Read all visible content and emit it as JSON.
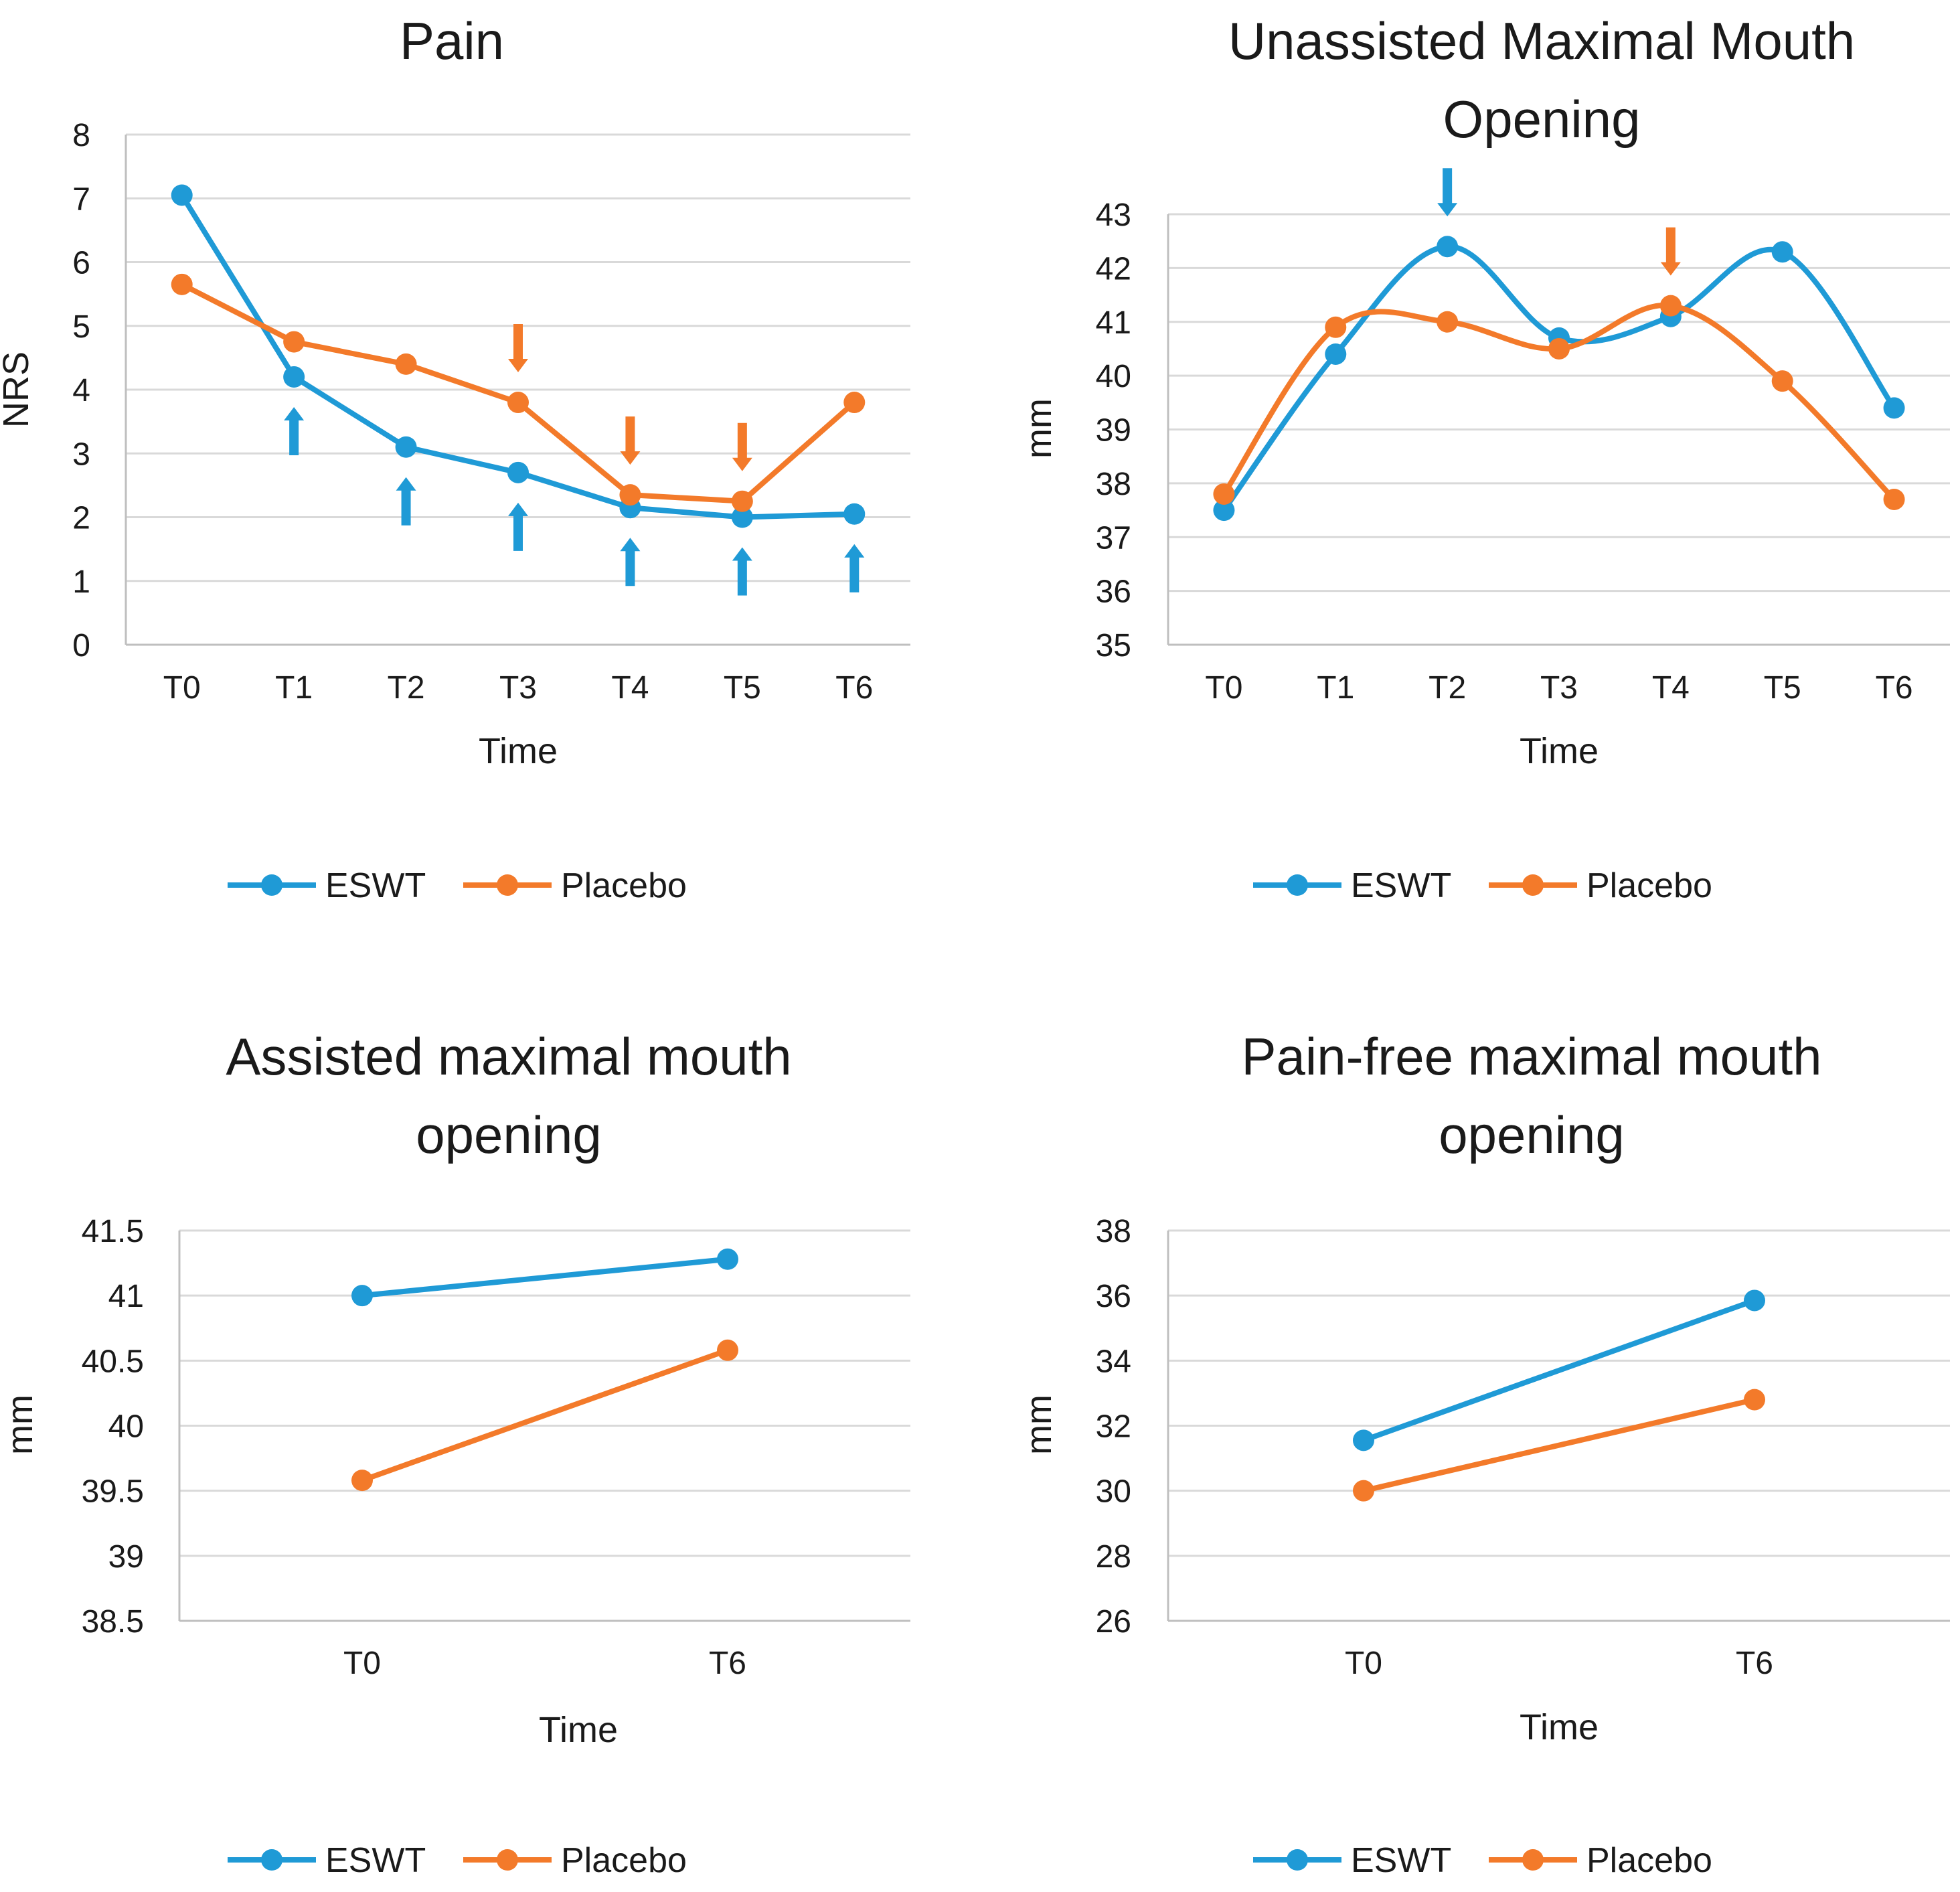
{
  "colors": {
    "eswt": "#1F9AD6",
    "placebo": "#F37A2A"
  },
  "chart_data": [
    {
      "type": "line",
      "title_lines": [
        "Pain"
      ],
      "xlabel": "Time",
      "ylabel": "NRS",
      "categories": [
        "T0",
        "T1",
        "T2",
        "T3",
        "T4",
        "T5",
        "T6"
      ],
      "ylim": [
        0,
        8
      ],
      "yticks": [
        "0",
        "1",
        "2",
        "3",
        "4",
        "5",
        "6",
        "7",
        "8"
      ],
      "smooth": false,
      "grid": true,
      "legend": "bottom",
      "series": [
        {
          "name": "ESWT",
          "color": "#1F9AD6",
          "values": [
            7.05,
            4.2,
            3.1,
            2.7,
            2.15,
            2.0,
            2.05
          ]
        },
        {
          "name": "Placebo",
          "color": "#F37A2A",
          "values": [
            5.65,
            4.75,
            4.4,
            3.8,
            2.35,
            2.25,
            3.8
          ]
        }
      ],
      "arrows": [
        {
          "series": "ESWT",
          "direction": "up",
          "categories": [
            "T1",
            "T2",
            "T3",
            "T4",
            "T5",
            "T6"
          ]
        },
        {
          "series": "Placebo",
          "direction": "down",
          "categories": [
            "T3",
            "T4",
            "T5"
          ]
        }
      ]
    },
    {
      "type": "line",
      "title_lines": [
        "Unassisted Maximal Mouth",
        "Opening"
      ],
      "xlabel": "Time",
      "ylabel": "mm",
      "categories": [
        "T0",
        "T1",
        "T2",
        "T3",
        "T4",
        "T5",
        "T6"
      ],
      "ylim": [
        35,
        43
      ],
      "yticks": [
        "35",
        "36",
        "37",
        "38",
        "39",
        "40",
        "41",
        "42",
        "43"
      ],
      "smooth": true,
      "grid": true,
      "legend": "bottom",
      "series": [
        {
          "name": "ESWT",
          "color": "#1F9AD6",
          "values": [
            37.5,
            40.4,
            42.4,
            40.7,
            41.1,
            42.3,
            39.4
          ]
        },
        {
          "name": "Placebo",
          "color": "#F37A2A",
          "values": [
            37.8,
            40.9,
            41.0,
            40.5,
            41.3,
            39.9,
            37.7
          ]
        }
      ],
      "arrows": [
        {
          "series": "ESWT",
          "direction": "down",
          "categories": [
            "T2"
          ]
        },
        {
          "series": "Placebo",
          "direction": "down",
          "categories": [
            "T4"
          ]
        }
      ]
    },
    {
      "type": "line",
      "title_lines": [
        "Assisted maximal mouth",
        "opening"
      ],
      "xlabel": "Time",
      "ylabel": "mm",
      "categories": [
        "T0",
        "T6"
      ],
      "ylim": [
        38.5,
        41.5
      ],
      "yticks": [
        "38.5",
        "39",
        "39.5",
        "40",
        "40.5",
        "41",
        "41.5"
      ],
      "smooth": false,
      "grid": true,
      "legend": "bottom",
      "series": [
        {
          "name": "ESWT",
          "color": "#1F9AD6",
          "values": [
            41.0,
            41.28
          ]
        },
        {
          "name": "Placebo",
          "color": "#F37A2A",
          "values": [
            39.58,
            40.58
          ]
        }
      ],
      "arrows": []
    },
    {
      "type": "line",
      "title_lines": [
        "Pain-free maximal mouth",
        "opening"
      ],
      "xlabel": "Time",
      "ylabel": "mm",
      "categories": [
        "T0",
        "T6"
      ],
      "ylim": [
        26,
        38
      ],
      "yticks": [
        "26",
        "28",
        "30",
        "32",
        "34",
        "36",
        "38"
      ],
      "smooth": false,
      "grid": true,
      "legend": "bottom",
      "series": [
        {
          "name": "ESWT",
          "color": "#1F9AD6",
          "values": [
            31.55,
            35.85
          ]
        },
        {
          "name": "Placebo",
          "color": "#F37A2A",
          "values": [
            30.0,
            32.8
          ]
        }
      ],
      "arrows": []
    }
  ]
}
